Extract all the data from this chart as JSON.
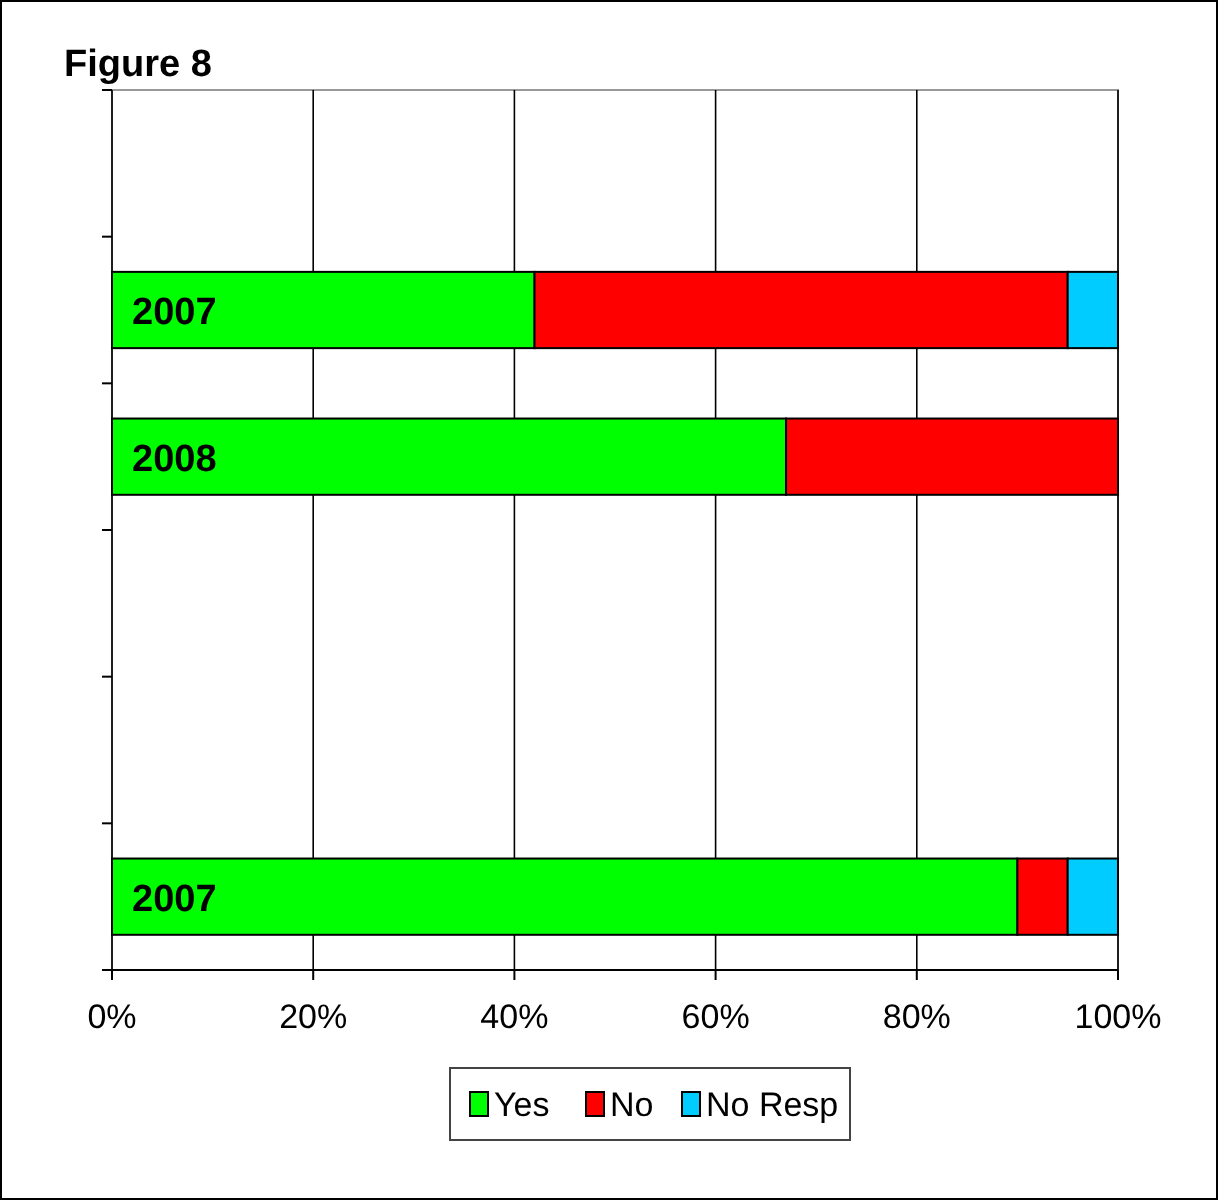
{
  "chart_data": {
    "type": "bar",
    "title": "Figure 8",
    "orientation": "horizontal",
    "stacked": true,
    "categories": [
      null,
      "2007",
      "2008",
      null,
      null,
      "2007"
    ],
    "series": [
      {
        "name": "Yes",
        "color": "#00ff00",
        "values": [
          null,
          42,
          67,
          null,
          null,
          90
        ]
      },
      {
        "name": "No",
        "color": "#ff0000",
        "values": [
          null,
          53,
          33,
          null,
          null,
          5
        ]
      },
      {
        "name": "No Resp",
        "color": "#00ccff",
        "values": [
          null,
          5,
          null,
          null,
          null,
          5
        ]
      }
    ],
    "xlim": [
      0,
      100
    ],
    "xticks": [
      {
        "value": 0,
        "label": "0%"
      },
      {
        "value": 20,
        "label": "20%"
      },
      {
        "value": 40,
        "label": "40%"
      },
      {
        "value": 60,
        "label": "60%"
      },
      {
        "value": 80,
        "label": "80%"
      },
      {
        "value": 100,
        "label": "100%"
      }
    ],
    "grid": "x",
    "legend": "bottom"
  }
}
